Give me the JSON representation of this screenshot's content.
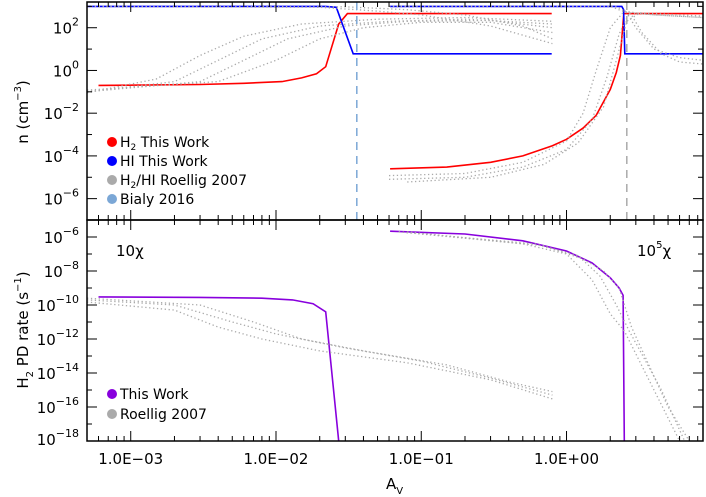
{
  "chart_data": [
    {
      "type": "line",
      "panel": "top",
      "xlabel": {
        "base": "A",
        "sub": "V"
      },
      "ylabel": {
        "pre": "n (cm",
        "sup": "−3",
        "post": ")"
      },
      "xscale": "log",
      "yscale": "log",
      "xlim": [
        0.0005,
        8.7
      ],
      "ylim": [
        1e-07,
        1600
      ],
      "yticks": [
        {
          "v": 100,
          "exp": "2"
        },
        {
          "v": 1,
          "exp": "0"
        },
        {
          "v": 0.01,
          "exp": "−2"
        },
        {
          "v": 0.0001,
          "exp": "−4"
        },
        {
          "v": 1e-06,
          "exp": "−6"
        }
      ],
      "legend_placement": "lower-left",
      "legend": [
        {
          "pre": "H",
          "sub": "2",
          "post": " This Work",
          "color": "#ff0000"
        },
        {
          "pre": "HI This Work",
          "sub": "",
          "post": "",
          "color": "#0000ff"
        },
        {
          "pre": "H",
          "sub": "2",
          "post": "/HI Roellig 2007",
          "color": "#aaaaaa"
        },
        {
          "pre": "Bialy 2016",
          "sub": "",
          "post": "",
          "color": "#7ba7d6"
        }
      ],
      "vlines": [
        {
          "x": 0.036,
          "color": "#7ba7d6",
          "label": "Bialy 2016"
        },
        {
          "x": 2.6,
          "color": "#aaaaaa",
          "label": "Bialy 2016"
        }
      ],
      "series": [
        {
          "id": "h2-low",
          "color": "#ff0000",
          "style": "solid",
          "points": [
            [
              0.0006,
              0.2
            ],
            [
              0.003,
              0.22
            ],
            [
              0.006,
              0.25
            ],
            [
              0.011,
              0.3
            ],
            [
              0.015,
              0.45
            ],
            [
              0.019,
              0.7
            ],
            [
              0.022,
              1.5
            ],
            [
              0.027,
              150
            ],
            [
              0.031,
              460
            ],
            [
              0.79,
              460
            ]
          ]
        },
        {
          "id": "hi-low",
          "color": "#0000ff",
          "style": "solid",
          "points": [
            [
              0.0005,
              1000
            ],
            [
              0.022,
              1000
            ],
            [
              0.026,
              900
            ],
            [
              0.034,
              6
            ],
            [
              0.79,
              6
            ]
          ]
        },
        {
          "id": "h2-high",
          "color": "#ff0000",
          "style": "solid",
          "points": [
            [
              0.061,
              2.5e-05
            ],
            [
              0.15,
              3e-05
            ],
            [
              0.3,
              5e-05
            ],
            [
              0.5,
              0.0001
            ],
            [
              0.8,
              0.0003
            ],
            [
              1.0,
              0.0006
            ],
            [
              1.3,
              0.002
            ],
            [
              1.6,
              0.008
            ],
            [
              2.0,
              0.13
            ],
            [
              2.2,
              0.8
            ],
            [
              2.35,
              5
            ],
            [
              2.42,
              60
            ],
            [
              2.48,
              460
            ],
            [
              8.7,
              460
            ]
          ]
        },
        {
          "id": "hi-high",
          "color": "#0000ff",
          "style": "solid",
          "points": [
            [
              0.061,
              1000
            ],
            [
              2.4,
              1000
            ],
            [
              2.47,
              700
            ],
            [
              2.52,
              6
            ],
            [
              8.7,
              6
            ]
          ]
        },
        {
          "id": "roellig-h2-low-1",
          "color": "#aaaaaa",
          "style": "dotted",
          "points": [
            [
              0.0005,
              0.1
            ],
            [
              0.002,
              0.3
            ],
            [
              0.004,
              3
            ],
            [
              0.008,
              30
            ],
            [
              0.02,
              120
            ],
            [
              0.06,
              200
            ],
            [
              0.2,
              250
            ],
            [
              0.8,
              150
            ]
          ]
        },
        {
          "id": "roellig-h2-low-2",
          "color": "#aaaaaa",
          "style": "dotted",
          "points": [
            [
              0.0005,
              0.1
            ],
            [
              0.003,
              0.3
            ],
            [
              0.006,
              3
            ],
            [
              0.012,
              30
            ],
            [
              0.03,
              120
            ],
            [
              0.08,
              200
            ],
            [
              0.3,
              220
            ],
            [
              0.8,
              100
            ]
          ]
        },
        {
          "id": "roellig-h2-low-3",
          "color": "#aaaaaa",
          "style": "dotted",
          "points": [
            [
              0.0005,
              0.12
            ],
            [
              0.004,
              0.3
            ],
            [
              0.01,
              3
            ],
            [
              0.02,
              30
            ],
            [
              0.04,
              100
            ],
            [
              0.1,
              180
            ],
            [
              0.3,
              180
            ],
            [
              0.8,
              60
            ]
          ]
        },
        {
          "id": "roellig-h2-low-4",
          "color": "#aaaaaa",
          "style": "dotted",
          "points": [
            [
              0.0005,
              0.09
            ],
            [
              0.0015,
              0.4
            ],
            [
              0.003,
              5
            ],
            [
              0.006,
              40
            ],
            [
              0.015,
              150
            ],
            [
              0.05,
              250
            ],
            [
              0.2,
              300
            ],
            [
              0.8,
              200
            ]
          ]
        },
        {
          "id": "roellig-hi-low-1",
          "color": "#aaaaaa",
          "style": "dotted",
          "points": [
            [
              0.0005,
              1000
            ],
            [
              0.02,
              900
            ],
            [
              0.05,
              600
            ],
            [
              0.1,
              400
            ],
            [
              0.3,
              120
            ],
            [
              0.8,
              18
            ]
          ]
        },
        {
          "id": "roellig-hi-low-2",
          "color": "#aaaaaa",
          "style": "dotted",
          "points": [
            [
              0.0005,
              1000
            ],
            [
              0.03,
              950
            ],
            [
              0.08,
              700
            ],
            [
              0.2,
              400
            ],
            [
              0.5,
              120
            ],
            [
              0.8,
              30
            ]
          ]
        },
        {
          "id": "roellig-h2-high-1",
          "color": "#aaaaaa",
          "style": "dotted",
          "points": [
            [
              0.06,
              1.2e-05
            ],
            [
              0.2,
              1.5e-05
            ],
            [
              0.5,
              5e-05
            ],
            [
              1.0,
              0.0005
            ],
            [
              1.3,
              0.01
            ],
            [
              1.6,
              1
            ],
            [
              2.0,
              100
            ],
            [
              2.5,
              600
            ],
            [
              3,
              500
            ],
            [
              4,
              400
            ],
            [
              8.7,
              300
            ]
          ]
        },
        {
          "id": "roellig-h2-high-2",
          "color": "#aaaaaa",
          "style": "dotted",
          "points": [
            [
              0.06,
              8e-06
            ],
            [
              0.2,
              1e-05
            ],
            [
              0.5,
              3e-05
            ],
            [
              1.0,
              0.0002
            ],
            [
              1.5,
              0.005
            ],
            [
              1.9,
              0.5
            ],
            [
              2.3,
              50
            ],
            [
              2.7,
              500
            ],
            [
              4,
              400
            ],
            [
              8.7,
              300
            ]
          ]
        },
        {
          "id": "roellig-h2-high-3",
          "color": "#aaaaaa",
          "style": "dotted",
          "points": [
            [
              0.08,
              6e-06
            ],
            [
              0.3,
              1e-05
            ],
            [
              0.7,
              4e-05
            ],
            [
              1.2,
              0.0004
            ],
            [
              1.8,
              0.02
            ],
            [
              2.2,
              3
            ],
            [
              2.6,
              200
            ],
            [
              3.2,
              500
            ],
            [
              8.7,
              350
            ]
          ]
        },
        {
          "id": "roellig-hi-high-1",
          "color": "#aaaaaa",
          "style": "dotted",
          "points": [
            [
              0.06,
              1000
            ],
            [
              2.0,
              1000
            ],
            [
              2.6,
              500
            ],
            [
              3,
              100
            ],
            [
              4,
              10
            ],
            [
              6,
              4
            ],
            [
              8.7,
              3
            ]
          ]
        },
        {
          "id": "roellig-hi-high-2",
          "color": "#aaaaaa",
          "style": "dotted",
          "points": [
            [
              0.06,
              1000
            ],
            [
              2.2,
              1000
            ],
            [
              2.8,
              400
            ],
            [
              3.3,
              60
            ],
            [
              4.5,
              6
            ],
            [
              6,
              2.5
            ],
            [
              8.7,
              2
            ]
          ]
        }
      ]
    },
    {
      "type": "line",
      "panel": "bottom",
      "xlabel": {
        "base": "A",
        "sub": "V"
      },
      "ylabel": {
        "pre": "H",
        "sub": "2",
        "mid": " PD rate (s",
        "sup": "−1",
        "post": ")"
      },
      "xscale": "log",
      "yscale": "log",
      "xlim": [
        0.0005,
        8.7
      ],
      "ylim": [
        1e-18,
        1e-05
      ],
      "xticks": [
        {
          "v": 0.001,
          "label": "1.0E−03"
        },
        {
          "v": 0.01,
          "label": "1.0E−02"
        },
        {
          "v": 0.1,
          "label": "1.0E−01"
        },
        {
          "v": 1,
          "label": "1.0E+00"
        }
      ],
      "yticks": [
        {
          "v": 1e-06,
          "exp": "−6"
        },
        {
          "v": 1e-08,
          "exp": "−8"
        },
        {
          "v": 1e-10,
          "exp": "−10"
        },
        {
          "v": 1e-12,
          "exp": "−12"
        },
        {
          "v": 1e-14,
          "exp": "−14"
        },
        {
          "v": 1e-16,
          "exp": "−16"
        },
        {
          "v": 1e-18,
          "exp": "−18"
        }
      ],
      "annotations": [
        {
          "pre": "10",
          "sup": "",
          "post": "χ"
        },
        {
          "pre": "10",
          "sup": "5",
          "post": "χ"
        }
      ],
      "legend_placement": "lower-left",
      "legend": [
        {
          "label": "This Work",
          "color": "#8800dd"
        },
        {
          "label": "Roellig 2007",
          "color": "#aaaaaa"
        }
      ],
      "series": [
        {
          "id": "pd-low",
          "color": "#8800dd",
          "style": "solid",
          "points": [
            [
              0.0006,
              3e-10
            ],
            [
              0.003,
              2.8e-10
            ],
            [
              0.008,
              2.5e-10
            ],
            [
              0.013,
              2e-10
            ],
            [
              0.018,
              1.2e-10
            ],
            [
              0.022,
              4e-11
            ],
            [
              0.027,
              1e-18
            ]
          ]
        },
        {
          "id": "pd-high",
          "color": "#8800dd",
          "style": "solid",
          "points": [
            [
              0.061,
              2.2e-06
            ],
            [
              0.2,
              1.5e-06
            ],
            [
              0.5,
              6e-07
            ],
            [
              1.0,
              1.5e-07
            ],
            [
              1.5,
              3e-08
            ],
            [
              2.0,
              4e-09
            ],
            [
              2.3,
              1e-09
            ],
            [
              2.45,
              3.7e-10
            ],
            [
              2.5,
              1e-18
            ]
          ]
        },
        {
          "id": "roellig-pd-low-1",
          "color": "#aaaaaa",
          "style": "dotted",
          "points": [
            [
              0.0005,
              2e-10
            ],
            [
              0.002,
              1e-10
            ],
            [
              0.005,
              1e-11
            ],
            [
              0.01,
              2e-12
            ],
            [
              0.03,
              3e-13
            ],
            [
              0.1,
              5e-14
            ],
            [
              0.3,
              5e-15
            ],
            [
              0.8,
              5e-16
            ]
          ]
        },
        {
          "id": "roellig-pd-low-2",
          "color": "#aaaaaa",
          "style": "dotted",
          "points": [
            [
              0.0005,
              2.5e-10
            ],
            [
              0.003,
              1e-10
            ],
            [
              0.007,
              1e-11
            ],
            [
              0.015,
              1e-12
            ],
            [
              0.04,
              2e-13
            ],
            [
              0.15,
              3e-14
            ],
            [
              0.4,
              3e-15
            ],
            [
              0.8,
              8e-16
            ]
          ]
        },
        {
          "id": "roellig-pd-low-3",
          "color": "#aaaaaa",
          "style": "dotted",
          "points": [
            [
              0.0005,
              1.5e-10
            ],
            [
              0.002,
              5e-11
            ],
            [
              0.004,
              5e-12
            ],
            [
              0.008,
              1e-12
            ],
            [
              0.02,
              2e-13
            ],
            [
              0.08,
              4e-14
            ],
            [
              0.3,
              4e-15
            ],
            [
              0.8,
              3e-16
            ]
          ]
        },
        {
          "id": "roellig-pd-high-1",
          "color": "#aaaaaa",
          "style": "dotted",
          "points": [
            [
              0.07,
              2e-06
            ],
            [
              0.5,
              4e-07
            ],
            [
              1.0,
              1e-07
            ],
            [
              1.5,
              3e-09
            ],
            [
              2.0,
              3e-11
            ],
            [
              2.5,
              3e-12
            ],
            [
              4,
              1e-15
            ],
            [
              6,
              1e-18
            ]
          ]
        },
        {
          "id": "roellig-pd-high-2",
          "color": "#aaaaaa",
          "style": "dotted",
          "points": [
            [
              0.07,
              2e-06
            ],
            [
              0.6,
              4e-07
            ],
            [
              1.2,
              8e-08
            ],
            [
              1.7,
              5e-09
            ],
            [
              2.2,
              1e-10
            ],
            [
              2.7,
              3e-12
            ],
            [
              4.5,
              1e-15
            ],
            [
              6.5,
              1e-18
            ]
          ]
        },
        {
          "id": "roellig-pd-high-3",
          "color": "#aaaaaa",
          "style": "dotted",
          "points": [
            [
              0.08,
              2e-06
            ],
            [
              0.7,
              3e-07
            ],
            [
              1.3,
              5e-08
            ],
            [
              1.8,
              1e-08
            ],
            [
              2.3,
              1e-09
            ],
            [
              2.8,
              5e-12
            ],
            [
              5,
              1e-16
            ],
            [
              7,
              1e-18
            ]
          ]
        }
      ]
    }
  ]
}
